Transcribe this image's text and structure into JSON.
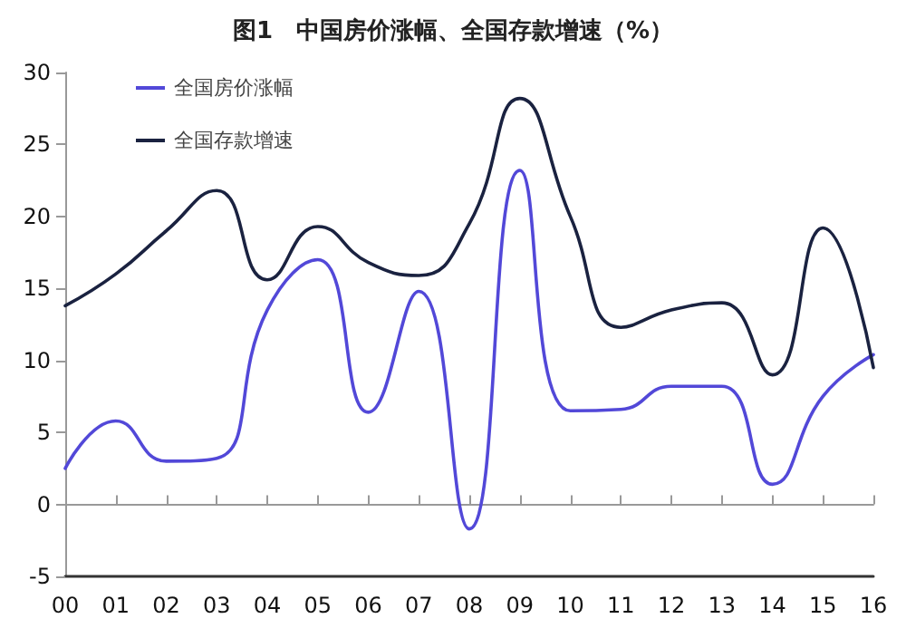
{
  "chart_data": {
    "type": "line",
    "title": "图1　中国房价涨幅、全国存款增速（%）",
    "categories": [
      "00",
      "01",
      "02",
      "03",
      "04",
      "05",
      "06",
      "07",
      "08",
      "09",
      "10",
      "11",
      "12",
      "13",
      "14",
      "15",
      "16"
    ],
    "series": [
      {
        "name": "全国房价涨幅",
        "color": "#5248d8",
        "values": [
          2.5,
          5.8,
          3,
          3.2,
          13.5,
          17,
          6.4,
          14.8,
          -1.7,
          23.2,
          6.5,
          6.6,
          8.2,
          8.2,
          1.4,
          7.5,
          10.4
        ]
      },
      {
        "name": "全国存款增速",
        "color": "#1a2240",
        "values": [
          13.8,
          16,
          19,
          21.8,
          15.6,
          19.3,
          16.8,
          15.9,
          19.5,
          28.2,
          20,
          12.3,
          13.5,
          14,
          9,
          19.2,
          9.5
        ]
      }
    ],
    "ylim": [
      -5,
      30
    ],
    "yticks": [
      -5,
      0,
      5,
      10,
      15,
      20,
      25,
      30
    ],
    "legend": "top left",
    "marker": "none",
    "line_style": "solid"
  }
}
